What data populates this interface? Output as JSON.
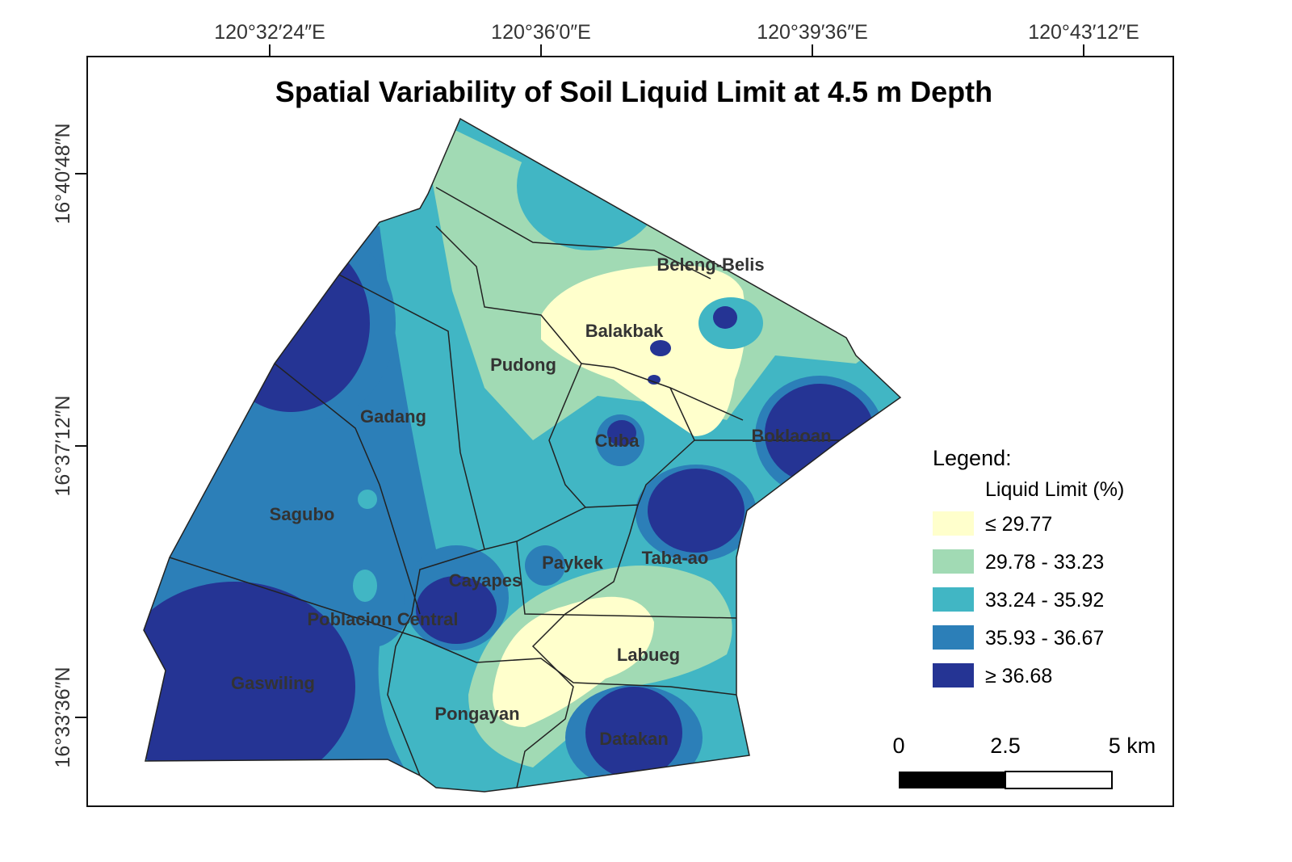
{
  "title": "Spatial Variability of Soil Liquid Limit at 4.5 m Depth",
  "longitude_labels": [
    "120°32′24″E",
    "120°36′0″E",
    "120°39′36″E",
    "120°43′12″E"
  ],
  "latitude_labels": [
    "16°40′48″N",
    "16°37′12″N",
    "16°33′36″N"
  ],
  "places": [
    "Beleng-Belis",
    "Balakbak",
    "Pudong",
    "Gadang",
    "Cuba",
    "Boklaoan",
    "Sagubo",
    "Cayapes",
    "Paykek",
    "Taba-ao",
    "Poblacion Central",
    "Labueg",
    "Gaswiling",
    "Pongayan",
    "Datakan"
  ],
  "legend": {
    "title": "Legend:",
    "subtitle": "Liquid Limit (%)",
    "items": [
      {
        "label": "≤ 29.77",
        "color": "#ffffcc"
      },
      {
        "label": "29.78 - 33.23",
        "color": "#a1dab4"
      },
      {
        "label": "33.24 - 35.92",
        "color": "#41b6c4"
      },
      {
        "label": "35.93 - 36.67",
        "color": "#2c7fb8"
      },
      {
        "label": "≥ 36.68",
        "color": "#253494"
      }
    ]
  },
  "scale_bar": {
    "labels": [
      "0",
      "2.5",
      "5 km"
    ]
  }
}
